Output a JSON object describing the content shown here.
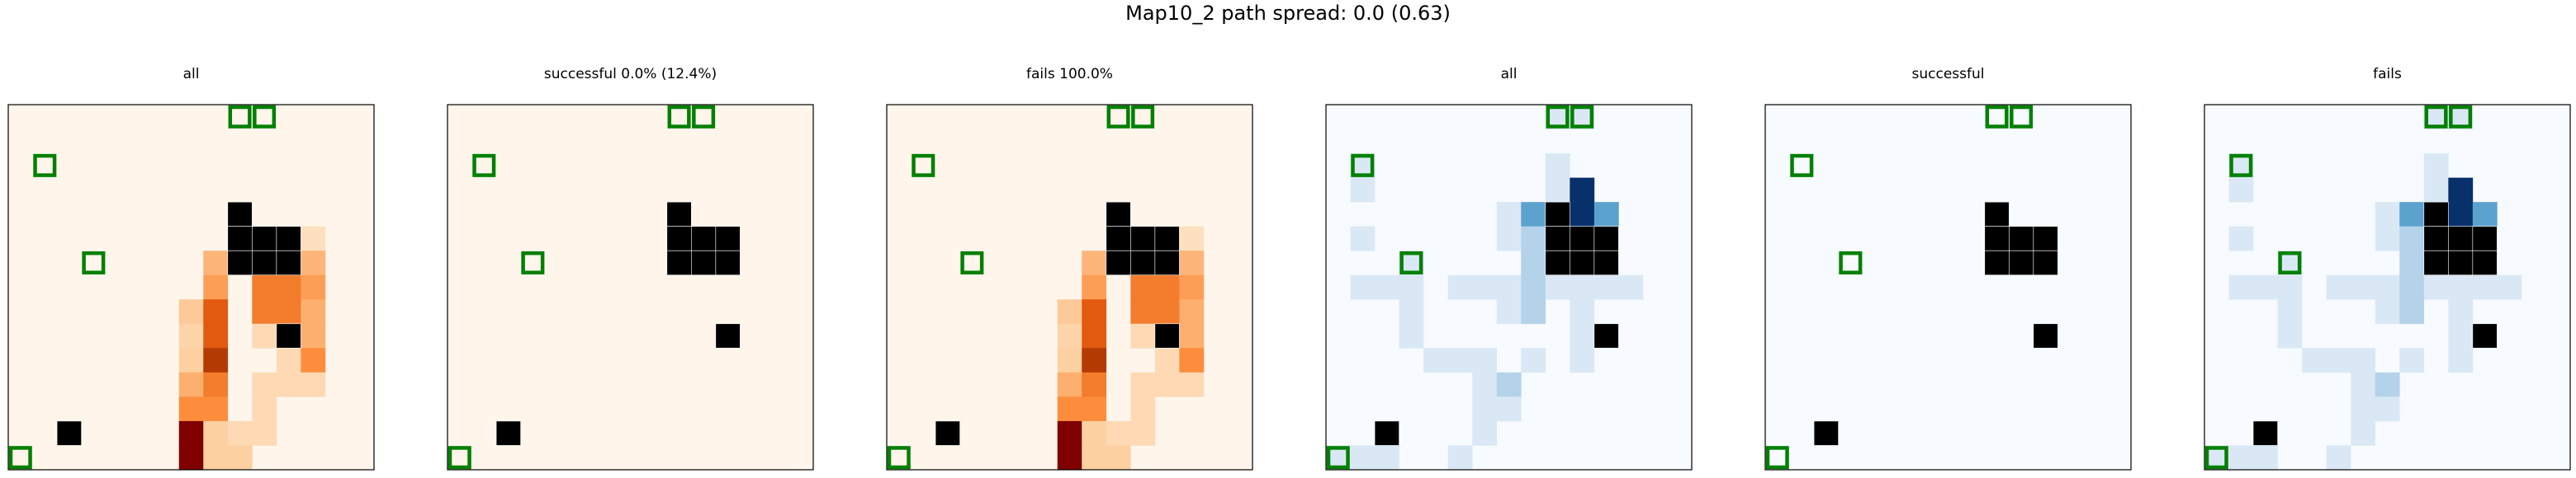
{
  "figure_title": "Map10_2 path spread: 0.0 (0.63)",
  "chart_data": [
    {
      "type": "heatmap",
      "title": "all",
      "colormap": "Oranges",
      "grid_rows": 15,
      "grid_cols": 15,
      "grid": false,
      "marker_color": "#008000",
      "obstacle_color": "#000000",
      "obstacles": [
        [
          4,
          9
        ],
        [
          5,
          9
        ],
        [
          5,
          10
        ],
        [
          5,
          11
        ],
        [
          6,
          9
        ],
        [
          6,
          10
        ],
        [
          6,
          11
        ],
        [
          9,
          11
        ],
        [
          13,
          2
        ]
      ],
      "goal_markers": [
        [
          0,
          9
        ],
        [
          0,
          10
        ],
        [
          2,
          1
        ],
        [
          6,
          3
        ],
        [
          14,
          0
        ]
      ],
      "cells": [
        [
          5,
          12,
          0.12
        ],
        [
          6,
          8,
          0.28
        ],
        [
          6,
          9,
          0.28
        ],
        [
          6,
          10,
          0.28
        ],
        [
          6,
          11,
          0.4
        ],
        [
          6,
          12,
          0.28
        ],
        [
          7,
          8,
          0.35
        ],
        [
          7,
          10,
          0.45
        ],
        [
          7,
          11,
          0.45
        ],
        [
          7,
          12,
          0.35
        ],
        [
          8,
          7,
          0.22
        ],
        [
          8,
          8,
          0.55
        ],
        [
          8,
          10,
          0.45
        ],
        [
          8,
          11,
          0.45
        ],
        [
          8,
          12,
          0.3
        ],
        [
          9,
          7,
          0.18
        ],
        [
          9,
          8,
          0.55
        ],
        [
          9,
          10,
          0.15
        ],
        [
          9,
          12,
          0.3
        ],
        [
          10,
          7,
          0.2
        ],
        [
          10,
          8,
          0.75
        ],
        [
          10,
          11,
          0.15
        ],
        [
          10,
          12,
          0.4
        ],
        [
          11,
          7,
          0.3
        ],
        [
          11,
          8,
          0.45
        ],
        [
          11,
          10,
          0.15
        ],
        [
          11,
          11,
          0.15
        ],
        [
          11,
          12,
          0.15
        ],
        [
          12,
          7,
          0.4
        ],
        [
          12,
          8,
          0.4
        ],
        [
          12,
          10,
          0.15
        ],
        [
          13,
          7,
          1.0
        ],
        [
          13,
          8,
          0.2
        ],
        [
          13,
          9,
          0.15
        ],
        [
          13,
          10,
          0.15
        ],
        [
          14,
          7,
          1.0
        ],
        [
          14,
          8,
          0.2
        ],
        [
          14,
          9,
          0.2
        ]
      ]
    },
    {
      "type": "heatmap",
      "title": "successful 0.0% (12.4%)",
      "colormap": "Oranges",
      "grid_rows": 15,
      "grid_cols": 15,
      "grid": false,
      "marker_color": "#008000",
      "obstacle_color": "#000000",
      "obstacles": [
        [
          4,
          9
        ],
        [
          5,
          9
        ],
        [
          5,
          10
        ],
        [
          5,
          11
        ],
        [
          6,
          9
        ],
        [
          6,
          10
        ],
        [
          6,
          11
        ],
        [
          9,
          11
        ],
        [
          13,
          2
        ]
      ],
      "goal_markers": [
        [
          0,
          9
        ],
        [
          0,
          10
        ],
        [
          2,
          1
        ],
        [
          6,
          3
        ],
        [
          14,
          0
        ]
      ],
      "cells": []
    },
    {
      "type": "heatmap",
      "title": "fails 100.0%",
      "colormap": "Oranges",
      "grid_rows": 15,
      "grid_cols": 15,
      "grid": false,
      "marker_color": "#008000",
      "obstacle_color": "#000000",
      "obstacles": [
        [
          4,
          9
        ],
        [
          5,
          9
        ],
        [
          5,
          10
        ],
        [
          5,
          11
        ],
        [
          6,
          9
        ],
        [
          6,
          10
        ],
        [
          6,
          11
        ],
        [
          9,
          11
        ],
        [
          13,
          2
        ]
      ],
      "goal_markers": [
        [
          0,
          9
        ],
        [
          0,
          10
        ],
        [
          2,
          1
        ],
        [
          6,
          3
        ],
        [
          14,
          0
        ]
      ],
      "cells": [
        [
          5,
          12,
          0.12
        ],
        [
          6,
          8,
          0.28
        ],
        [
          6,
          9,
          0.28
        ],
        [
          6,
          10,
          0.28
        ],
        [
          6,
          11,
          0.4
        ],
        [
          6,
          12,
          0.28
        ],
        [
          7,
          8,
          0.35
        ],
        [
          7,
          10,
          0.45
        ],
        [
          7,
          11,
          0.45
        ],
        [
          7,
          12,
          0.35
        ],
        [
          8,
          7,
          0.22
        ],
        [
          8,
          8,
          0.55
        ],
        [
          8,
          10,
          0.45
        ],
        [
          8,
          11,
          0.45
        ],
        [
          8,
          12,
          0.3
        ],
        [
          9,
          7,
          0.18
        ],
        [
          9,
          8,
          0.55
        ],
        [
          9,
          10,
          0.15
        ],
        [
          9,
          12,
          0.3
        ],
        [
          10,
          7,
          0.2
        ],
        [
          10,
          8,
          0.75
        ],
        [
          10,
          11,
          0.15
        ],
        [
          10,
          12,
          0.4
        ],
        [
          11,
          7,
          0.3
        ],
        [
          11,
          8,
          0.45
        ],
        [
          11,
          10,
          0.15
        ],
        [
          11,
          11,
          0.15
        ],
        [
          11,
          12,
          0.15
        ],
        [
          12,
          7,
          0.4
        ],
        [
          12,
          8,
          0.4
        ],
        [
          12,
          10,
          0.15
        ],
        [
          13,
          7,
          1.0
        ],
        [
          13,
          8,
          0.2
        ],
        [
          13,
          9,
          0.15
        ],
        [
          13,
          10,
          0.15
        ],
        [
          14,
          7,
          1.0
        ],
        [
          14,
          8,
          0.2
        ],
        [
          14,
          9,
          0.2
        ]
      ]
    },
    {
      "type": "heatmap",
      "title": "all",
      "colormap": "Blues",
      "grid_rows": 15,
      "grid_cols": 15,
      "grid": false,
      "marker_color": "#008000",
      "obstacle_color": "#000000",
      "obstacles": [
        [
          4,
          9
        ],
        [
          5,
          9
        ],
        [
          5,
          10
        ],
        [
          5,
          11
        ],
        [
          6,
          9
        ],
        [
          6,
          10
        ],
        [
          6,
          11
        ],
        [
          9,
          11
        ],
        [
          13,
          2
        ]
      ],
      "goal_markers": [
        [
          0,
          9
        ],
        [
          0,
          10
        ],
        [
          2,
          1
        ],
        [
          6,
          3
        ],
        [
          14,
          0
        ]
      ],
      "cells": [
        [
          0,
          9,
          0.15
        ],
        [
          0,
          10,
          0.15
        ],
        [
          2,
          1,
          0.15
        ],
        [
          2,
          9,
          0.15
        ],
        [
          3,
          1,
          0.15
        ],
        [
          3,
          9,
          0.15
        ],
        [
          3,
          10,
          1.0
        ],
        [
          4,
          7,
          0.15
        ],
        [
          4,
          8,
          0.55
        ],
        [
          4,
          10,
          1.0
        ],
        [
          4,
          11,
          0.55
        ],
        [
          5,
          1,
          0.15
        ],
        [
          5,
          7,
          0.15
        ],
        [
          5,
          8,
          0.3
        ],
        [
          6,
          3,
          0.15
        ],
        [
          6,
          8,
          0.3
        ],
        [
          7,
          1,
          0.15
        ],
        [
          7,
          2,
          0.15
        ],
        [
          7,
          3,
          0.15
        ],
        [
          7,
          5,
          0.15
        ],
        [
          7,
          6,
          0.15
        ],
        [
          7,
          7,
          0.15
        ],
        [
          7,
          8,
          0.3
        ],
        [
          7,
          9,
          0.15
        ],
        [
          7,
          10,
          0.15
        ],
        [
          7,
          11,
          0.15
        ],
        [
          7,
          12,
          0.15
        ],
        [
          8,
          3,
          0.15
        ],
        [
          8,
          7,
          0.15
        ],
        [
          8,
          8,
          0.3
        ],
        [
          8,
          10,
          0.15
        ],
        [
          9,
          3,
          0.15
        ],
        [
          9,
          10,
          0.15
        ],
        [
          10,
          4,
          0.15
        ],
        [
          10,
          5,
          0.15
        ],
        [
          10,
          6,
          0.15
        ],
        [
          10,
          8,
          0.15
        ],
        [
          10,
          10,
          0.15
        ],
        [
          11,
          6,
          0.15
        ],
        [
          11,
          7,
          0.3
        ],
        [
          12,
          6,
          0.15
        ],
        [
          12,
          7,
          0.15
        ],
        [
          13,
          6,
          0.15
        ],
        [
          14,
          0,
          0.15
        ],
        [
          14,
          1,
          0.15
        ],
        [
          14,
          2,
          0.15
        ],
        [
          14,
          5,
          0.15
        ]
      ]
    },
    {
      "type": "heatmap",
      "title": "successful",
      "colormap": "Blues",
      "grid_rows": 15,
      "grid_cols": 15,
      "grid": false,
      "marker_color": "#008000",
      "obstacle_color": "#000000",
      "obstacles": [
        [
          4,
          9
        ],
        [
          5,
          9
        ],
        [
          5,
          10
        ],
        [
          5,
          11
        ],
        [
          6,
          9
        ],
        [
          6,
          10
        ],
        [
          6,
          11
        ],
        [
          9,
          11
        ],
        [
          13,
          2
        ]
      ],
      "goal_markers": [
        [
          0,
          9
        ],
        [
          0,
          10
        ],
        [
          2,
          1
        ],
        [
          6,
          3
        ],
        [
          14,
          0
        ]
      ],
      "cells": []
    },
    {
      "type": "heatmap",
      "title": "fails",
      "colormap": "Blues",
      "grid_rows": 15,
      "grid_cols": 15,
      "grid": false,
      "marker_color": "#008000",
      "obstacle_color": "#000000",
      "obstacles": [
        [
          4,
          9
        ],
        [
          5,
          9
        ],
        [
          5,
          10
        ],
        [
          5,
          11
        ],
        [
          6,
          9
        ],
        [
          6,
          10
        ],
        [
          6,
          11
        ],
        [
          9,
          11
        ],
        [
          13,
          2
        ]
      ],
      "goal_markers": [
        [
          0,
          9
        ],
        [
          0,
          10
        ],
        [
          2,
          1
        ],
        [
          6,
          3
        ],
        [
          14,
          0
        ]
      ],
      "cells": [
        [
          0,
          9,
          0.15
        ],
        [
          0,
          10,
          0.15
        ],
        [
          2,
          1,
          0.15
        ],
        [
          2,
          9,
          0.15
        ],
        [
          3,
          1,
          0.15
        ],
        [
          3,
          9,
          0.15
        ],
        [
          3,
          10,
          1.0
        ],
        [
          4,
          7,
          0.15
        ],
        [
          4,
          8,
          0.55
        ],
        [
          4,
          10,
          1.0
        ],
        [
          4,
          11,
          0.55
        ],
        [
          5,
          1,
          0.15
        ],
        [
          5,
          7,
          0.15
        ],
        [
          5,
          8,
          0.3
        ],
        [
          6,
          3,
          0.15
        ],
        [
          6,
          8,
          0.3
        ],
        [
          7,
          1,
          0.15
        ],
        [
          7,
          2,
          0.15
        ],
        [
          7,
          3,
          0.15
        ],
        [
          7,
          5,
          0.15
        ],
        [
          7,
          6,
          0.15
        ],
        [
          7,
          7,
          0.15
        ],
        [
          7,
          8,
          0.3
        ],
        [
          7,
          9,
          0.15
        ],
        [
          7,
          10,
          0.15
        ],
        [
          7,
          11,
          0.15
        ],
        [
          7,
          12,
          0.15
        ],
        [
          8,
          3,
          0.15
        ],
        [
          8,
          7,
          0.15
        ],
        [
          8,
          8,
          0.3
        ],
        [
          8,
          10,
          0.15
        ],
        [
          9,
          3,
          0.15
        ],
        [
          9,
          10,
          0.15
        ],
        [
          10,
          4,
          0.15
        ],
        [
          10,
          5,
          0.15
        ],
        [
          10,
          6,
          0.15
        ],
        [
          10,
          8,
          0.15
        ],
        [
          10,
          10,
          0.15
        ],
        [
          11,
          6,
          0.15
        ],
        [
          11,
          7,
          0.3
        ],
        [
          12,
          6,
          0.15
        ],
        [
          12,
          7,
          0.15
        ],
        [
          13,
          6,
          0.15
        ],
        [
          14,
          0,
          0.15
        ],
        [
          14,
          1,
          0.15
        ],
        [
          14,
          2,
          0.15
        ],
        [
          14,
          5,
          0.15
        ]
      ]
    }
  ]
}
